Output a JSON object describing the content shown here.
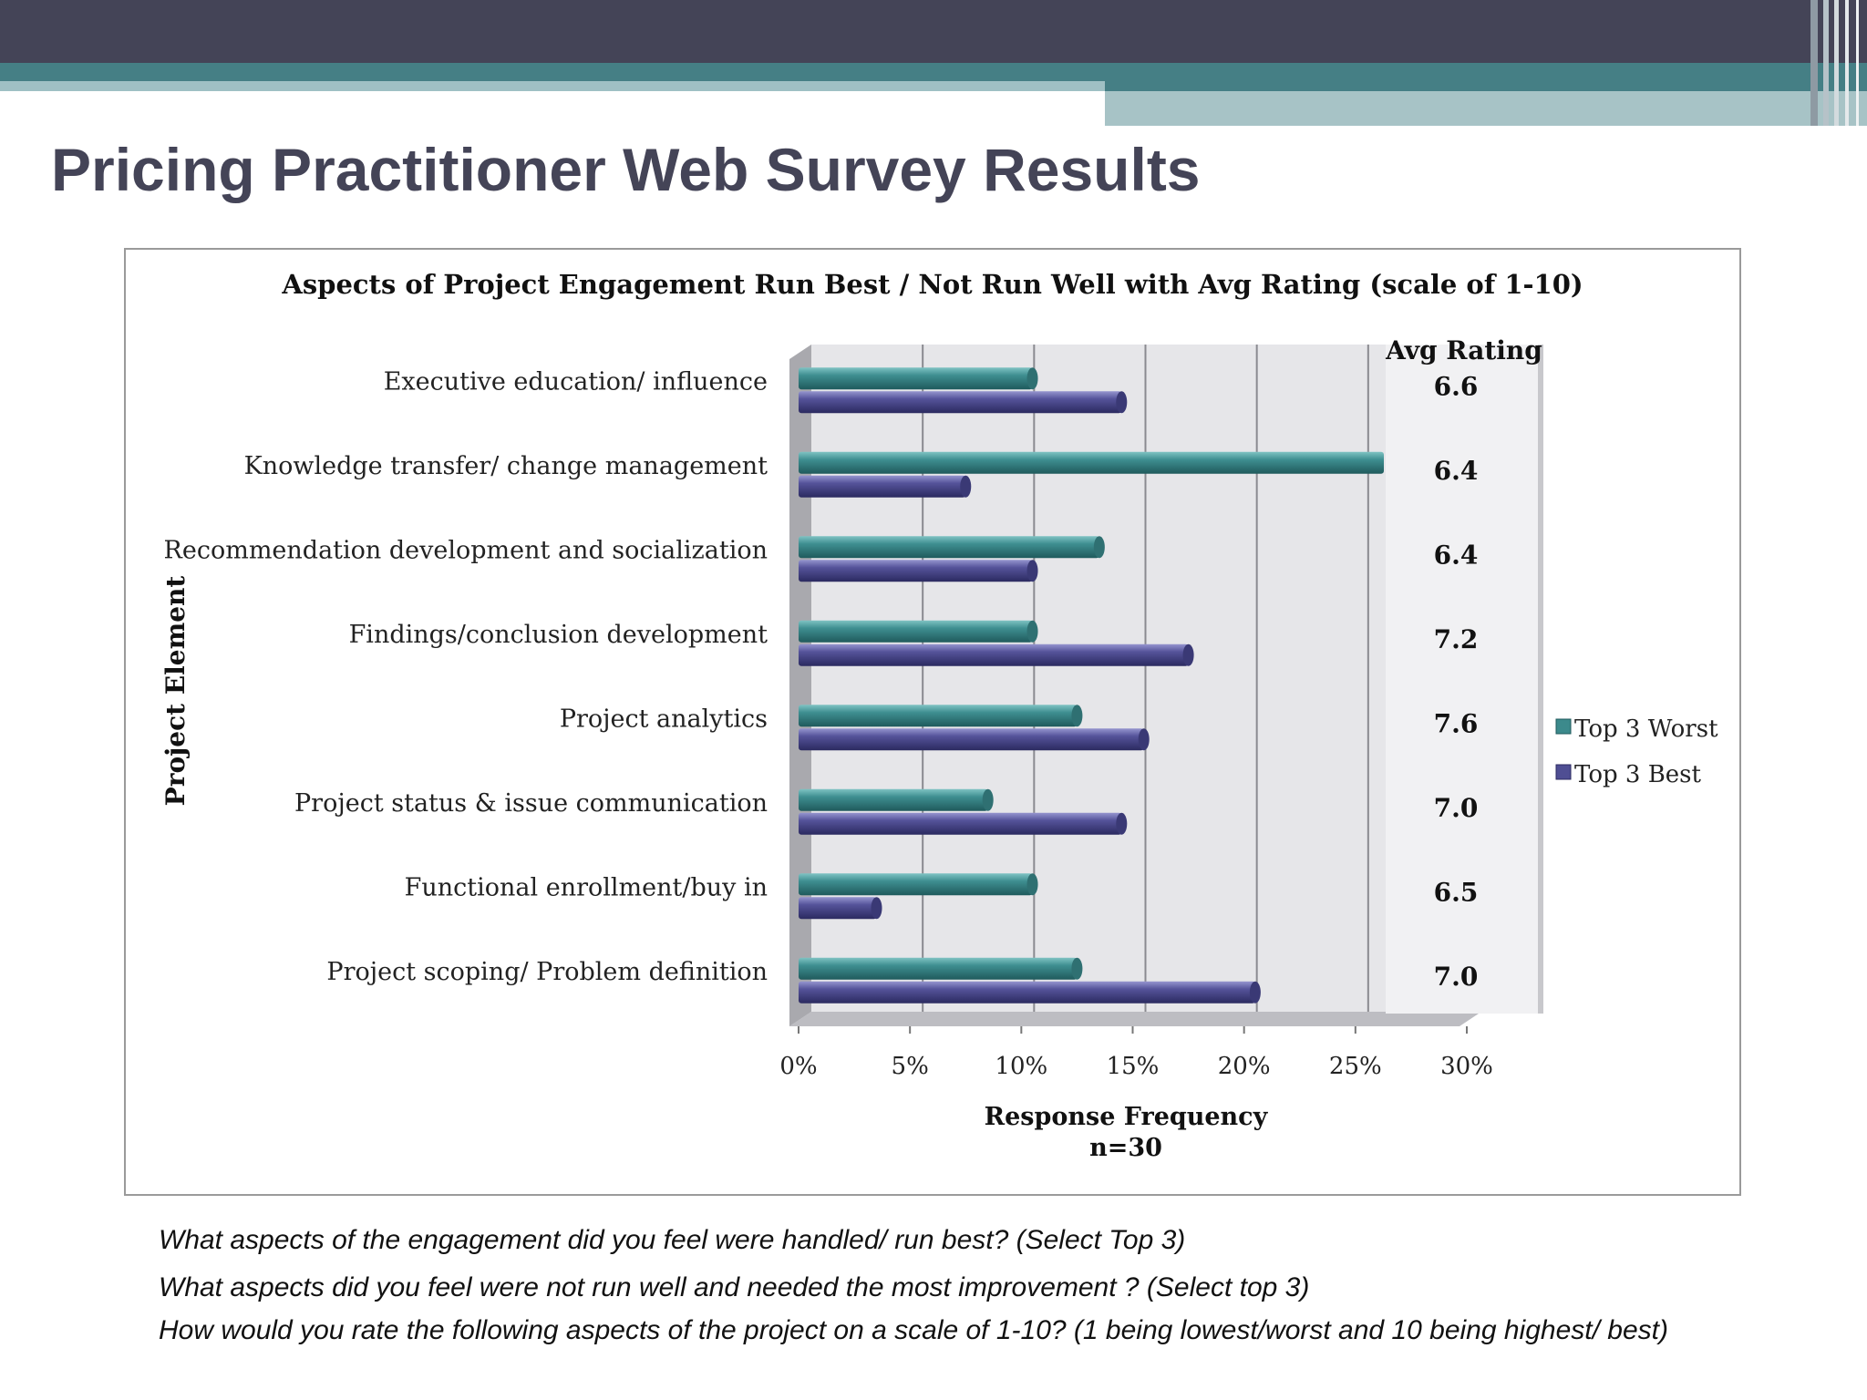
{
  "slide": {
    "title": "Pricing Practitioner Web Survey Results",
    "questions": [
      "What aspects of the engagement did you feel were handled/ run best? (Select Top 3)",
      "What aspects did you feel were not run well and needed the most improvement ? (Select top 3)",
      "How would you rate the following aspects of the project on a scale of 1-10? (1 being lowest/worst and 10 being highest/ best)"
    ]
  },
  "colors": {
    "header_dark": "#444457",
    "header_teal": "#457f85",
    "header_light": "#a7c3c6",
    "title_text": "#444457",
    "worst_series": "#3c8a8c",
    "best_series": "#4f4e93",
    "plot_bg": "#e6e6e9",
    "avg_panel_bg": "#f1f1f3"
  },
  "chart_data": {
    "type": "bar",
    "orientation": "horizontal",
    "title": "Aspects of Project Engagement Run Best / Not Run Well with Avg Rating (scale of 1-10)",
    "ylabel": "Project Element",
    "xlabel": "Response Frequency",
    "xlabel_sub": "n=30",
    "xlim": [
      0,
      30
    ],
    "xticks": [
      "0%",
      "5%",
      "10%",
      "15%",
      "20%",
      "25%",
      "30%"
    ],
    "grid": true,
    "legend_position": "right",
    "categories": [
      "Executive education/ influence",
      "Knowledge transfer/ change management",
      "Recommendation development and socialization",
      "Findings/conclusion development",
      "Project analytics",
      "Project status & issue communication",
      "Functional enrollment/buy in",
      "Project scoping/ Problem definition"
    ],
    "series": [
      {
        "name": "Top 3 Worst",
        "values": [
          10.5,
          26.7,
          13.5,
          10.5,
          12.5,
          8.5,
          10.5,
          12.5
        ]
      },
      {
        "name": "Top 3 Best",
        "values": [
          14.5,
          7.5,
          10.5,
          17.5,
          15.5,
          14.5,
          3.5,
          20.5
        ]
      }
    ],
    "avg_rating": {
      "header": "Avg Rating",
      "values": [
        "6.6",
        "6.4",
        "6.4",
        "7.2",
        "7.6",
        "7.0",
        "6.5",
        "7.0"
      ]
    }
  }
}
